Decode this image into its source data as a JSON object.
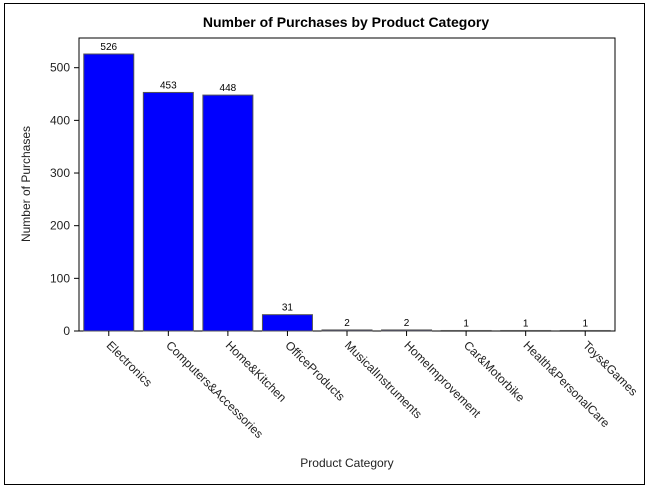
{
  "chart_data": {
    "type": "bar",
    "title": "Number of Purchases by Product Category",
    "xlabel": "Product Category",
    "ylabel": "Number of Purchases",
    "categories": [
      "Electronics",
      "Computers&Accessories",
      "Home&Kitchen",
      "OfficeProducts",
      "MusicalInstruments",
      "HomeImprovement",
      "Car&Motorbike",
      "Health&PersonalCare",
      "Toys&Games"
    ],
    "values": [
      526,
      453,
      448,
      31,
      2,
      2,
      1,
      1,
      1
    ],
    "yticks": [
      0,
      100,
      200,
      300,
      400,
      500
    ],
    "ylim": [
      0,
      550
    ],
    "grid": false,
    "bar_color": "#0000ff",
    "bar_edge_color": "#555555"
  }
}
